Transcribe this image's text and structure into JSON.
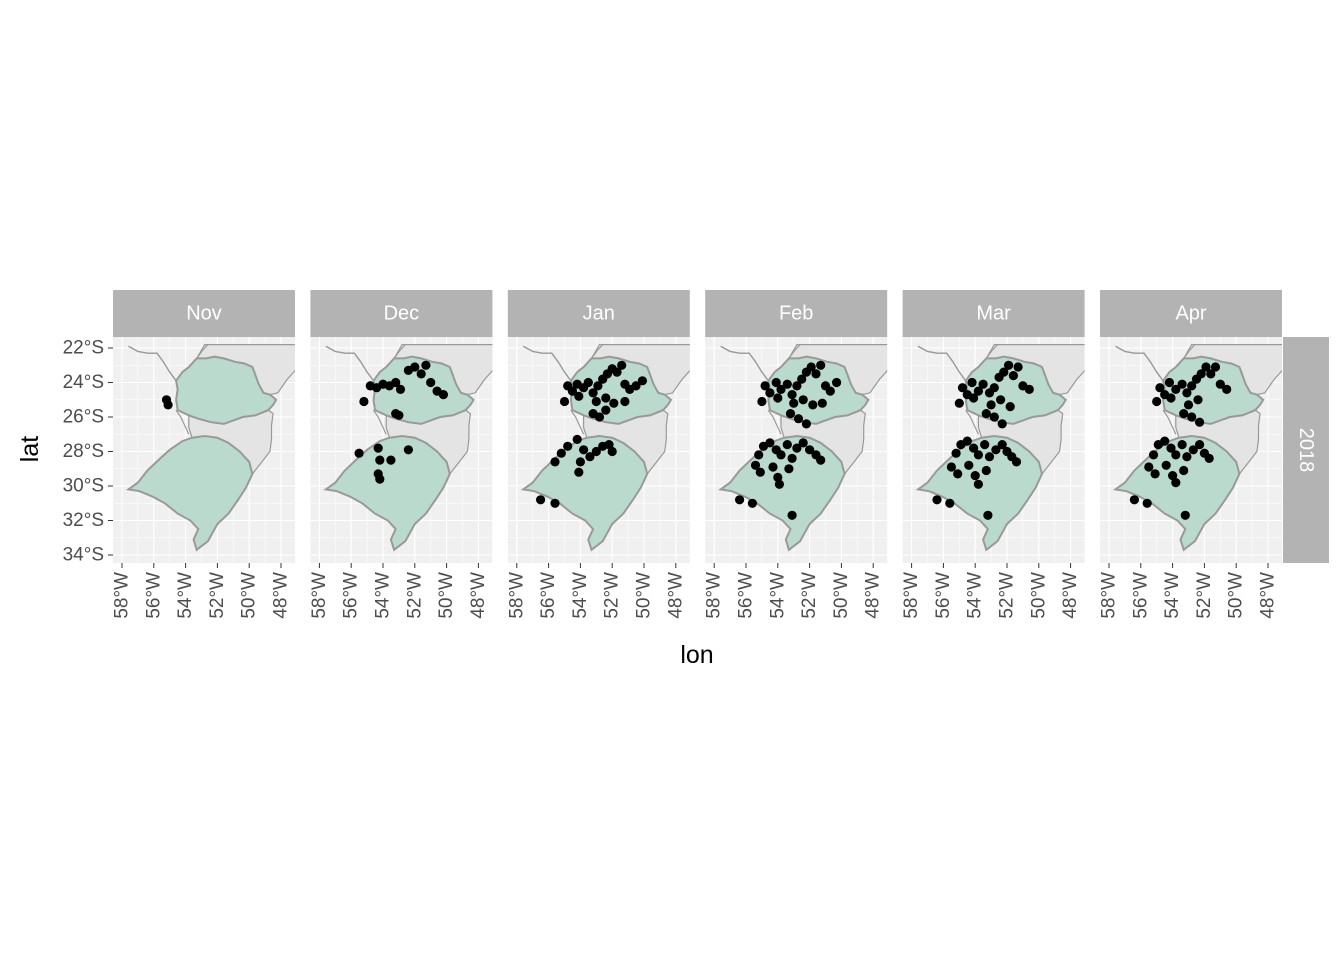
{
  "chart_data": {
    "type": "scatter",
    "facet_rows": [
      "2018"
    ],
    "facet_cols": [
      "Nov",
      "Dec",
      "Jan",
      "Feb",
      "Mar",
      "Apr"
    ],
    "xlabel": "lon",
    "ylabel": "lat",
    "xlim": [
      -59,
      -47
    ],
    "ylim": [
      -34.5,
      -21.8
    ],
    "x_ticks": [
      -58,
      -56,
      -54,
      -52,
      -50,
      -48
    ],
    "x_tick_labels": [
      "58°W",
      "56°W",
      "54°W",
      "52°W",
      "50°W",
      "48°W"
    ],
    "y_ticks": [
      -22,
      -24,
      -26,
      -28,
      -30,
      -32,
      -34
    ],
    "y_tick_labels": [
      "22°S",
      "24°S",
      "26°S",
      "28°S",
      "30°S",
      "32°S",
      "34°S"
    ],
    "grid": true,
    "colors": {
      "panel_bg": "#f0f0f0",
      "grid": "#ffffff",
      "strip_bg": "#b3b3b3",
      "strip_text": "#ffffff",
      "region_fill": "#b9dacd",
      "neighbor_fill": "#e4e4e4",
      "border": "#999999",
      "point": "#000000"
    },
    "highlighted_regions": [
      "Paraná",
      "Rio Grande do Sul"
    ],
    "panels": [
      {
        "month": "Nov",
        "points": [
          [
            -55.2,
            -25.0
          ],
          [
            -55.1,
            -25.3
          ]
        ]
      },
      {
        "month": "Dec",
        "points": [
          [
            -54.8,
            -24.2
          ],
          [
            -54.4,
            -24.3
          ],
          [
            -54.0,
            -24.1
          ],
          [
            -53.6,
            -24.2
          ],
          [
            -53.2,
            -24.0
          ],
          [
            -52.9,
            -24.4
          ],
          [
            -52.4,
            -23.3
          ],
          [
            -52.0,
            -23.1
          ],
          [
            -51.6,
            -23.5
          ],
          [
            -51.3,
            -23.0
          ],
          [
            -51.0,
            -24.0
          ],
          [
            -50.6,
            -24.5
          ],
          [
            -50.2,
            -24.7
          ],
          [
            -53.2,
            -25.8
          ],
          [
            -53.0,
            -25.9
          ],
          [
            -55.2,
            -25.1
          ],
          [
            -55.5,
            -28.1
          ],
          [
            -54.3,
            -27.8
          ],
          [
            -54.2,
            -28.5
          ],
          [
            -54.3,
            -29.3
          ],
          [
            -54.2,
            -29.6
          ],
          [
            -53.5,
            -28.5
          ],
          [
            -52.4,
            -27.9
          ]
        ]
      },
      {
        "month": "Jan",
        "points": [
          [
            -54.8,
            -24.2
          ],
          [
            -54.5,
            -24.5
          ],
          [
            -54.2,
            -24.1
          ],
          [
            -53.8,
            -24.3
          ],
          [
            -53.5,
            -24.0
          ],
          [
            -53.2,
            -24.6
          ],
          [
            -52.9,
            -24.2
          ],
          [
            -52.6,
            -23.8
          ],
          [
            -52.3,
            -23.5
          ],
          [
            -52.0,
            -23.2
          ],
          [
            -51.7,
            -23.4
          ],
          [
            -51.4,
            -23.0
          ],
          [
            -51.2,
            -24.1
          ],
          [
            -50.9,
            -24.4
          ],
          [
            -50.5,
            -24.2
          ],
          [
            -50.1,
            -23.9
          ],
          [
            -52.4,
            -24.9
          ],
          [
            -53.0,
            -25.1
          ],
          [
            -54.1,
            -24.8
          ],
          [
            -55.0,
            -25.1
          ],
          [
            -53.2,
            -25.8
          ],
          [
            -52.8,
            -26.0
          ],
          [
            -52.4,
            -25.6
          ],
          [
            -51.9,
            -25.2
          ],
          [
            -51.2,
            -25.1
          ],
          [
            -55.2,
            -28.1
          ],
          [
            -54.8,
            -27.7
          ],
          [
            -54.2,
            -27.3
          ],
          [
            -53.8,
            -27.9
          ],
          [
            -53.4,
            -28.3
          ],
          [
            -53.0,
            -28.0
          ],
          [
            -52.6,
            -27.7
          ],
          [
            -52.2,
            -27.6
          ],
          [
            -52.0,
            -28.0
          ],
          [
            -54.0,
            -28.6
          ],
          [
            -54.1,
            -29.2
          ],
          [
            -55.6,
            -28.6
          ],
          [
            -56.5,
            -30.8
          ],
          [
            -55.6,
            -31.0
          ]
        ]
      },
      {
        "month": "Feb",
        "points": [
          [
            -54.8,
            -24.2
          ],
          [
            -54.5,
            -24.6
          ],
          [
            -54.1,
            -24.0
          ],
          [
            -53.8,
            -24.4
          ],
          [
            -53.4,
            -24.1
          ],
          [
            -53.1,
            -24.7
          ],
          [
            -52.8,
            -24.2
          ],
          [
            -52.5,
            -23.8
          ],
          [
            -52.2,
            -23.4
          ],
          [
            -51.9,
            -23.1
          ],
          [
            -51.6,
            -23.5
          ],
          [
            -51.3,
            -23.0
          ],
          [
            -51.0,
            -24.2
          ],
          [
            -50.7,
            -24.5
          ],
          [
            -50.3,
            -24.0
          ],
          [
            -52.4,
            -25.0
          ],
          [
            -53.0,
            -25.2
          ],
          [
            -54.0,
            -24.9
          ],
          [
            -55.0,
            -25.1
          ],
          [
            -53.2,
            -25.8
          ],
          [
            -52.7,
            -26.1
          ],
          [
            -52.2,
            -26.4
          ],
          [
            -51.8,
            -25.3
          ],
          [
            -51.2,
            -25.2
          ],
          [
            -55.2,
            -28.2
          ],
          [
            -54.9,
            -27.7
          ],
          [
            -54.5,
            -27.5
          ],
          [
            -54.1,
            -27.9
          ],
          [
            -53.8,
            -28.2
          ],
          [
            -53.4,
            -27.6
          ],
          [
            -53.1,
            -28.4
          ],
          [
            -52.8,
            -27.8
          ],
          [
            -52.4,
            -27.5
          ],
          [
            -52.0,
            -27.9
          ],
          [
            -51.6,
            -28.2
          ],
          [
            -51.3,
            -28.5
          ],
          [
            -55.4,
            -28.8
          ],
          [
            -55.1,
            -29.2
          ],
          [
            -54.3,
            -28.9
          ],
          [
            -54.0,
            -29.5
          ],
          [
            -53.9,
            -29.9
          ],
          [
            -53.3,
            -29.0
          ],
          [
            -56.4,
            -30.8
          ],
          [
            -55.6,
            -31.0
          ],
          [
            -53.1,
            -31.7
          ]
        ]
      },
      {
        "month": "Mar",
        "points": [
          [
            -54.8,
            -24.3
          ],
          [
            -54.5,
            -24.7
          ],
          [
            -54.2,
            -24.0
          ],
          [
            -53.8,
            -24.5
          ],
          [
            -53.5,
            -24.1
          ],
          [
            -53.1,
            -24.6
          ],
          [
            -52.8,
            -24.3
          ],
          [
            -52.5,
            -23.7
          ],
          [
            -52.2,
            -23.4
          ],
          [
            -51.9,
            -23.0
          ],
          [
            -51.6,
            -23.6
          ],
          [
            -51.3,
            -23.1
          ],
          [
            -51.0,
            -24.2
          ],
          [
            -50.6,
            -24.4
          ],
          [
            -52.4,
            -25.0
          ],
          [
            -53.0,
            -25.3
          ],
          [
            -54.1,
            -24.9
          ],
          [
            -55.0,
            -25.2
          ],
          [
            -53.3,
            -25.8
          ],
          [
            -52.8,
            -26.0
          ],
          [
            -52.3,
            -26.4
          ],
          [
            -51.8,
            -25.4
          ],
          [
            -55.2,
            -28.1
          ],
          [
            -54.9,
            -27.6
          ],
          [
            -54.5,
            -27.4
          ],
          [
            -54.1,
            -27.8
          ],
          [
            -53.8,
            -28.2
          ],
          [
            -53.4,
            -27.6
          ],
          [
            -53.1,
            -28.3
          ],
          [
            -52.7,
            -27.9
          ],
          [
            -52.3,
            -27.6
          ],
          [
            -52.0,
            -28.0
          ],
          [
            -51.7,
            -28.3
          ],
          [
            -51.4,
            -28.6
          ],
          [
            -55.5,
            -28.9
          ],
          [
            -55.1,
            -29.3
          ],
          [
            -54.4,
            -28.8
          ],
          [
            -54.0,
            -29.4
          ],
          [
            -53.8,
            -29.9
          ],
          [
            -53.3,
            -29.1
          ],
          [
            -56.4,
            -30.8
          ],
          [
            -55.6,
            -31.0
          ],
          [
            -53.2,
            -31.7
          ]
        ]
      },
      {
        "month": "Apr",
        "points": [
          [
            -54.8,
            -24.3
          ],
          [
            -54.5,
            -24.7
          ],
          [
            -54.2,
            -24.0
          ],
          [
            -53.8,
            -24.4
          ],
          [
            -53.4,
            -24.1
          ],
          [
            -53.1,
            -24.6
          ],
          [
            -52.8,
            -24.2
          ],
          [
            -52.5,
            -23.8
          ],
          [
            -52.2,
            -23.5
          ],
          [
            -51.9,
            -23.1
          ],
          [
            -51.6,
            -23.5
          ],
          [
            -51.3,
            -23.1
          ],
          [
            -51.0,
            -24.1
          ],
          [
            -50.6,
            -24.4
          ],
          [
            -52.4,
            -25.0
          ],
          [
            -53.0,
            -25.3
          ],
          [
            -54.1,
            -24.9
          ],
          [
            -55.0,
            -25.1
          ],
          [
            -53.3,
            -25.8
          ],
          [
            -52.8,
            -26.0
          ],
          [
            -52.3,
            -26.3
          ],
          [
            -55.2,
            -28.2
          ],
          [
            -54.9,
            -27.6
          ],
          [
            -54.5,
            -27.4
          ],
          [
            -54.1,
            -27.8
          ],
          [
            -53.8,
            -28.2
          ],
          [
            -53.4,
            -27.6
          ],
          [
            -53.1,
            -28.3
          ],
          [
            -52.7,
            -27.9
          ],
          [
            -52.3,
            -27.6
          ],
          [
            -52.0,
            -28.1
          ],
          [
            -51.7,
            -28.4
          ],
          [
            -55.5,
            -28.9
          ],
          [
            -55.1,
            -29.3
          ],
          [
            -54.4,
            -28.8
          ],
          [
            -54.0,
            -29.4
          ],
          [
            -53.8,
            -29.8
          ],
          [
            -53.3,
            -29.1
          ],
          [
            -56.4,
            -30.8
          ],
          [
            -55.6,
            -31.0
          ],
          [
            -53.2,
            -31.7
          ]
        ]
      }
    ]
  }
}
